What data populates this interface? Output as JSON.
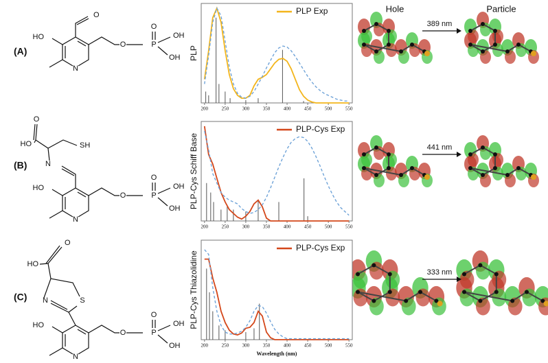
{
  "panels": [
    "(A)",
    "(B)",
    "(C)"
  ],
  "headers": {
    "hole": "Hole",
    "particle": "Particle"
  },
  "molecules": [
    {
      "atoms": [
        "O",
        "HO",
        "N",
        "O",
        "P",
        "O",
        "OH",
        "OH"
      ],
      "transition": "389 nm"
    },
    {
      "atoms": [
        "O",
        "HO",
        "SH",
        "N",
        "HO",
        "N",
        "O",
        "P",
        "O",
        "OH",
        "OH"
      ],
      "transition": "441 nm"
    },
    {
      "atoms": [
        "HO",
        "O",
        "N",
        "S",
        "HO",
        "N",
        "O",
        "P",
        "O",
        "OH",
        "OH"
      ],
      "transition": "333 nm"
    }
  ],
  "chart_data": [
    {
      "type": "line",
      "ylabel": "PLP",
      "legend": "upper right",
      "x": [
        200,
        210,
        220,
        230,
        240,
        250,
        260,
        270,
        280,
        290,
        300,
        310,
        320,
        330,
        340,
        350,
        360,
        370,
        380,
        390,
        400,
        410,
        420,
        430,
        440,
        450,
        460,
        470,
        480,
        490,
        500,
        510,
        520,
        530,
        540,
        550
      ],
      "series": [
        {
          "name": "PLP Exp",
          "color": "#f3b51b",
          "values": [
            0.25,
            0.55,
            0.9,
            1.0,
            0.85,
            0.55,
            0.3,
            0.15,
            0.08,
            0.05,
            0.05,
            0.08,
            0.18,
            0.25,
            0.27,
            0.3,
            0.36,
            0.42,
            0.46,
            0.47,
            0.44,
            0.36,
            0.25,
            0.14,
            0.07,
            0.03,
            0.01,
            0,
            0,
            0,
            0,
            0,
            0,
            0,
            0,
            0
          ]
        },
        {
          "color": "#6fa3d8",
          "dashed": true,
          "values": [
            0.2,
            0.5,
            0.85,
            1.0,
            0.92,
            0.65,
            0.38,
            0.2,
            0.1,
            0.06,
            0.05,
            0.07,
            0.12,
            0.2,
            0.28,
            0.37,
            0.45,
            0.53,
            0.58,
            0.6,
            0.59,
            0.55,
            0.49,
            0.42,
            0.35,
            0.28,
            0.22,
            0.17,
            0.13,
            0.1,
            0.08,
            0.06,
            0.04,
            0.03,
            0.02,
            0.02
          ]
        }
      ],
      "sticks": {
        "color": "#555555",
        "x": [
          203,
          210,
          228,
          235,
          250,
          262,
          300,
          330,
          389,
          440
        ],
        "values": [
          0.12,
          0.08,
          0.9,
          0.2,
          0.12,
          0.05,
          0.03,
          0.05,
          0.56,
          0.02
        ]
      },
      "xlim": [
        192,
        558
      ],
      "xticks": [
        200,
        250,
        300,
        350,
        400,
        450,
        500,
        550
      ],
      "ylim": [
        0,
        1.05
      ]
    },
    {
      "type": "line",
      "ylabel": "PLP-Cys Schiff Base",
      "legend": "upper right",
      "x": [
        200,
        210,
        220,
        230,
        240,
        250,
        260,
        270,
        280,
        290,
        300,
        310,
        320,
        330,
        340,
        350,
        360,
        370,
        380,
        390,
        400,
        410,
        420,
        430,
        440,
        450,
        460,
        470,
        480,
        490,
        500,
        510,
        520,
        530,
        540,
        550
      ],
      "series": [
        {
          "name": "PLP-Cys Exp",
          "color": "#d4471a",
          "values": [
            1.0,
            0.7,
            0.6,
            0.45,
            0.3,
            0.2,
            0.12,
            0.08,
            0.04,
            0.02,
            0.05,
            0.1,
            0.18,
            0.22,
            0.15,
            0.03,
            0,
            0,
            0,
            0,
            0,
            0,
            0,
            0,
            0,
            0,
            0,
            0,
            0,
            0,
            0,
            0,
            0,
            0,
            0,
            0
          ]
        },
        {
          "color": "#6fa3d8",
          "dashed": true,
          "values": [
            0.95,
            0.75,
            0.5,
            0.4,
            0.3,
            0.25,
            0.22,
            0.2,
            0.18,
            0.13,
            0.1,
            0.08,
            0.09,
            0.12,
            0.17,
            0.25,
            0.35,
            0.46,
            0.57,
            0.67,
            0.76,
            0.83,
            0.87,
            0.89,
            0.88,
            0.84,
            0.77,
            0.68,
            0.58,
            0.47,
            0.37,
            0.28,
            0.2,
            0.14,
            0.1,
            0.06
          ]
        }
      ],
      "sticks": {
        "color": "#555555",
        "x": [
          205,
          215,
          222,
          240,
          255,
          270,
          300,
          330,
          380,
          441,
          450
        ],
        "values": [
          0.4,
          0.3,
          0.2,
          0.12,
          0.15,
          0.12,
          0.1,
          0.22,
          0.2,
          0.45,
          0.05
        ]
      },
      "xlim": [
        192,
        558
      ],
      "xticks": [
        200,
        250,
        300,
        350,
        400,
        450,
        500,
        550
      ],
      "ylim": [
        0,
        1.05
      ]
    },
    {
      "type": "line",
      "ylabel": "PLP-Cys Thiazolidine",
      "xlabel": "Wavelength (nm)",
      "legend": "upper right",
      "x": [
        200,
        210,
        220,
        230,
        240,
        250,
        260,
        270,
        280,
        290,
        300,
        310,
        320,
        330,
        340,
        350,
        360,
        370,
        380,
        390,
        400,
        410,
        420,
        430,
        440,
        450,
        460,
        470,
        480,
        490,
        500,
        510,
        520,
        530,
        540,
        550
      ],
      "series": [
        {
          "name": "PLP-Cys Exp",
          "color": "#d4471a",
          "values": [
            0.85,
            0.85,
            0.65,
            0.5,
            0.3,
            0.18,
            0.1,
            0.06,
            0.05,
            0.07,
            0.12,
            0.13,
            0.18,
            0.3,
            0.25,
            0.08,
            0.02,
            0,
            0,
            0,
            0,
            0,
            0,
            0,
            0,
            0,
            0,
            0,
            0,
            0,
            0,
            0,
            0,
            0,
            0,
            0
          ]
        },
        {
          "color": "#6fa3d8",
          "dashed": true,
          "values": [
            0.95,
            0.9,
            0.55,
            0.3,
            0.15,
            0.08,
            0.06,
            0.06,
            0.07,
            0.09,
            0.13,
            0.2,
            0.3,
            0.36,
            0.35,
            0.28,
            0.19,
            0.11,
            0.06,
            0.03,
            0.01,
            0.01,
            0.01,
            0.01,
            0.01,
            0.01,
            0.01,
            0.01,
            0.01,
            0.01,
            0.01,
            0.01,
            0.01,
            0.01,
            0.01,
            0.01
          ]
        }
      ],
      "sticks": {
        "color": "#555555",
        "x": [
          205,
          212,
          220,
          235,
          250,
          300,
          320,
          333
        ],
        "values": [
          0.75,
          0.5,
          0.3,
          0.15,
          0.1,
          0.08,
          0.12,
          0.38
        ]
      },
      "xlim": [
        192,
        558
      ],
      "xticks": [
        200,
        250,
        300,
        350,
        400,
        450,
        500,
        550
      ],
      "ylim": [
        0,
        1.05
      ]
    }
  ]
}
